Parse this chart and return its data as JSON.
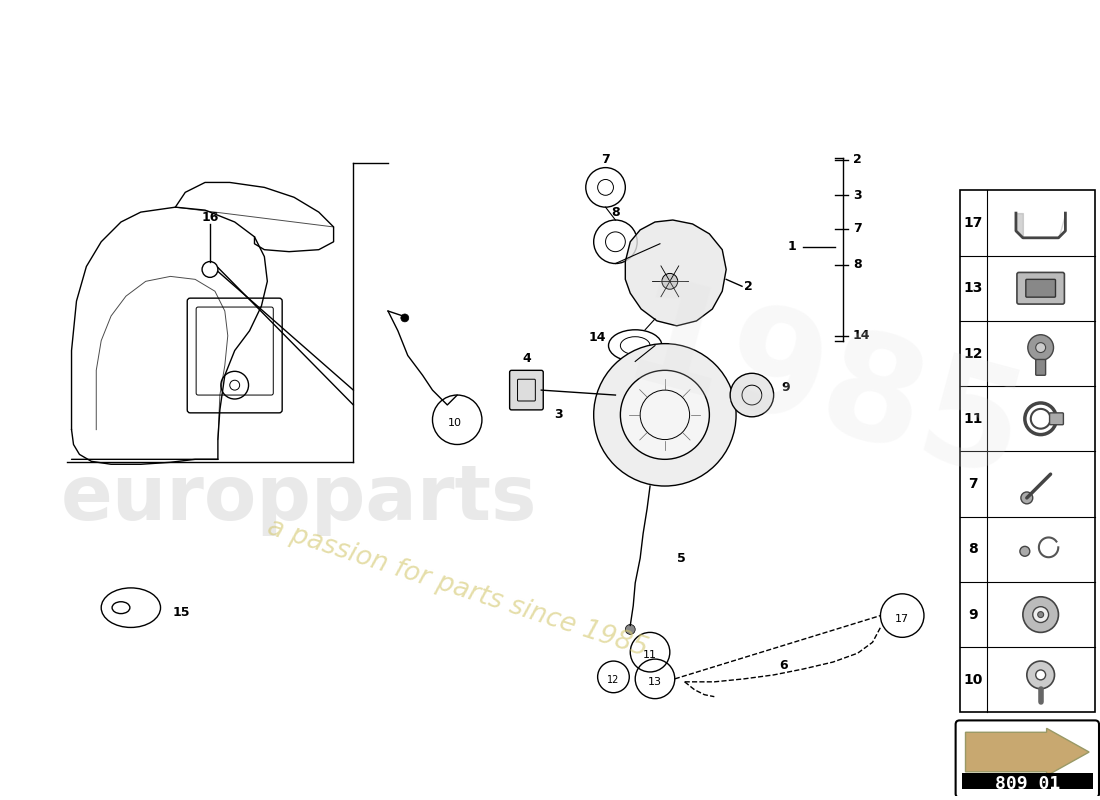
{
  "bg_color": "#ffffff",
  "part_number": "809 01",
  "lw": 1.0,
  "parts_list_right": [
    "17",
    "13",
    "12",
    "11",
    "7",
    "8",
    "9",
    "10"
  ],
  "watermark1": "europparts",
  "watermark2": "a passion for parts since 1985"
}
